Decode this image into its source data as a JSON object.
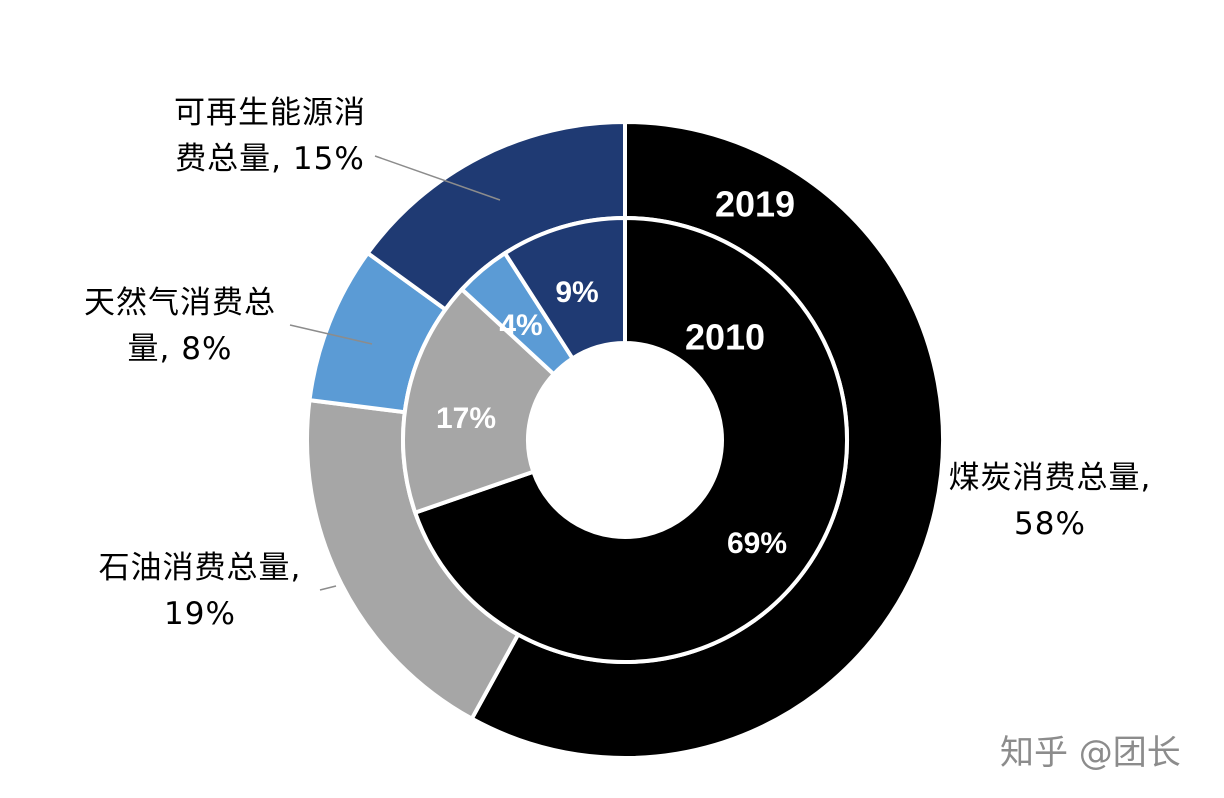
{
  "chart_data": {
    "type": "donut",
    "colors": [
      "#000000",
      "#a6a6a6",
      "#5b9bd5",
      "#1f3a73"
    ],
    "series": [
      {
        "name": "2019",
        "values": [
          58,
          19,
          8,
          15
        ],
        "value_labels": [
          "煤炭消费总量, 58%",
          "石油消费总量, 19%",
          "天然气消费总量, 8%",
          "可再生能源消费总量, 15%"
        ]
      },
      {
        "name": "2010",
        "values": [
          69,
          17,
          4,
          9
        ],
        "value_labels": [
          "69%",
          "17%",
          "4%",
          "9%"
        ]
      }
    ]
  },
  "watermark": "知乎 @团长"
}
